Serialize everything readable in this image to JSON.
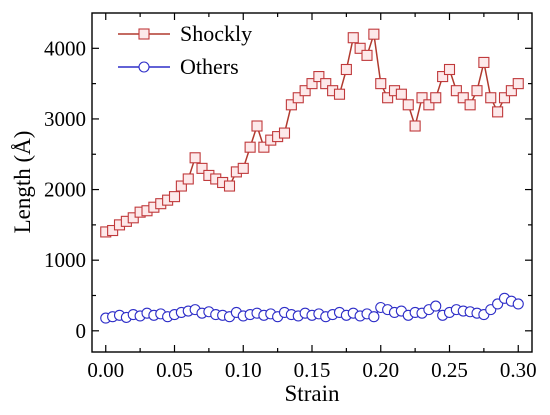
{
  "chart_data": {
    "type": "line",
    "title": "",
    "xlabel": "Strain",
    "ylabel": "Length (Å)",
    "xlim": [
      -0.01,
      0.31
    ],
    "ylim": [
      -300,
      4500
    ],
    "xticks": [
      "0.00",
      "0.05",
      "0.10",
      "0.15",
      "0.20",
      "0.25",
      "0.30"
    ],
    "yticks": [
      "0",
      "1000",
      "2000",
      "3000",
      "4000"
    ],
    "grid": false,
    "legend_position": "top-left",
    "series": [
      {
        "name": "Shockly",
        "color": "#b03a2e",
        "marker": "square",
        "x": [
          0.0,
          0.005,
          0.01,
          0.015,
          0.02,
          0.025,
          0.03,
          0.035,
          0.04,
          0.045,
          0.05,
          0.055,
          0.06,
          0.065,
          0.07,
          0.075,
          0.08,
          0.085,
          0.09,
          0.095,
          0.1,
          0.105,
          0.11,
          0.115,
          0.12,
          0.125,
          0.13,
          0.135,
          0.14,
          0.145,
          0.15,
          0.155,
          0.16,
          0.165,
          0.17,
          0.175,
          0.18,
          0.185,
          0.19,
          0.195,
          0.2,
          0.205,
          0.21,
          0.215,
          0.22,
          0.225,
          0.23,
          0.235,
          0.24,
          0.245,
          0.25,
          0.255,
          0.26,
          0.265,
          0.27,
          0.275,
          0.28,
          0.285,
          0.29,
          0.295,
          0.3
        ],
        "values": [
          1400,
          1420,
          1500,
          1550,
          1600,
          1680,
          1700,
          1750,
          1800,
          1850,
          1900,
          2050,
          2150,
          2450,
          2300,
          2200,
          2150,
          2100,
          2050,
          2250,
          2300,
          2600,
          2900,
          2600,
          2700,
          2750,
          2800,
          3200,
          3300,
          3400,
          3500,
          3600,
          3500,
          3400,
          3350,
          3700,
          4150,
          4000,
          3900,
          4200,
          3500,
          3300,
          3400,
          3350,
          3200,
          2900,
          3300,
          3200,
          3300,
          3600,
          3700,
          3400,
          3300,
          3200,
          3400,
          3800,
          3300,
          3100,
          3300,
          3400,
          3500
        ]
      },
      {
        "name": "Others",
        "color": "#2e2ec8",
        "marker": "circle",
        "x": [
          0.0,
          0.005,
          0.01,
          0.015,
          0.02,
          0.025,
          0.03,
          0.035,
          0.04,
          0.045,
          0.05,
          0.055,
          0.06,
          0.065,
          0.07,
          0.075,
          0.08,
          0.085,
          0.09,
          0.095,
          0.1,
          0.105,
          0.11,
          0.115,
          0.12,
          0.125,
          0.13,
          0.135,
          0.14,
          0.145,
          0.15,
          0.155,
          0.16,
          0.165,
          0.17,
          0.175,
          0.18,
          0.185,
          0.19,
          0.195,
          0.2,
          0.205,
          0.21,
          0.215,
          0.22,
          0.225,
          0.23,
          0.235,
          0.24,
          0.245,
          0.25,
          0.255,
          0.26,
          0.265,
          0.27,
          0.275,
          0.28,
          0.285,
          0.29,
          0.295,
          0.3
        ],
        "values": [
          180,
          200,
          220,
          190,
          230,
          210,
          250,
          220,
          240,
          200,
          230,
          260,
          280,
          300,
          250,
          270,
          230,
          220,
          200,
          260,
          210,
          230,
          250,
          220,
          240,
          200,
          260,
          230,
          210,
          250,
          220,
          240,
          200,
          230,
          260,
          220,
          250,
          210,
          240,
          200,
          330,
          300,
          260,
          280,
          220,
          260,
          250,
          300,
          350,
          220,
          260,
          300,
          280,
          270,
          250,
          230,
          300,
          380,
          460,
          420,
          380
        ]
      }
    ]
  }
}
